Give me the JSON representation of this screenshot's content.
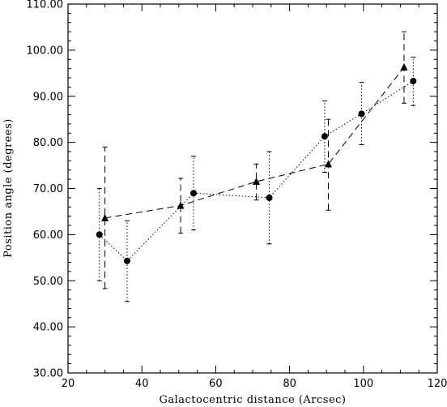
{
  "chart_data": {
    "type": "scatter",
    "title": "",
    "xlabel": "Galactocentric distance (Arcsec)",
    "ylabel": "Position angle (degrees)",
    "xlim": [
      20,
      120
    ],
    "ylim": [
      30,
      110
    ],
    "xticks": [
      20,
      40,
      60,
      80,
      100,
      120
    ],
    "yticks": [
      30,
      40,
      50,
      60,
      70,
      80,
      90,
      100,
      110
    ],
    "xtick_labels": [
      "20",
      "40",
      "60",
      "80",
      "100",
      "120"
    ],
    "ytick_labels": [
      "30.00",
      "40.00",
      "50.00",
      "60.00",
      "70.00",
      "80.00",
      "90.00",
      "100.00",
      "110.00"
    ],
    "grid": false,
    "series": [
      {
        "marker": "circle",
        "line_style": "dotted",
        "error_bar_style": "dotted",
        "points": [
          {
            "x": 28.5,
            "y": 60.0,
            "err_low": 50.0,
            "err_high": 70.0
          },
          {
            "x": 36.0,
            "y": 54.3,
            "err_low": 45.5,
            "err_high": 63.0
          },
          {
            "x": 54.0,
            "y": 69.0,
            "err_low": 61.0,
            "err_high": 77.0
          },
          {
            "x": 74.5,
            "y": 68.0,
            "err_low": 58.0,
            "err_high": 78.0
          },
          {
            "x": 89.5,
            "y": 81.3,
            "err_low": 73.5,
            "err_high": 89.0
          },
          {
            "x": 99.5,
            "y": 86.2,
            "err_low": 79.5,
            "err_high": 93.0
          },
          {
            "x": 113.5,
            "y": 93.3,
            "err_low": 88.0,
            "err_high": 98.5
          }
        ]
      },
      {
        "marker": "triangle",
        "line_style": "dashed",
        "error_bar_style": "dashed",
        "points": [
          {
            "x": 30.0,
            "y": 63.6,
            "err_low": 48.3,
            "err_high": 79.0
          },
          {
            "x": 50.5,
            "y": 66.3,
            "err_low": 60.3,
            "err_high": 72.2
          },
          {
            "x": 71.0,
            "y": 71.5,
            "err_low": 67.5,
            "err_high": 75.3
          },
          {
            "x": 90.5,
            "y": 75.3,
            "err_low": 65.3,
            "err_high": 85.0
          },
          {
            "x": 111.0,
            "y": 96.3,
            "err_low": 88.5,
            "err_high": 104.0
          }
        ]
      }
    ]
  }
}
